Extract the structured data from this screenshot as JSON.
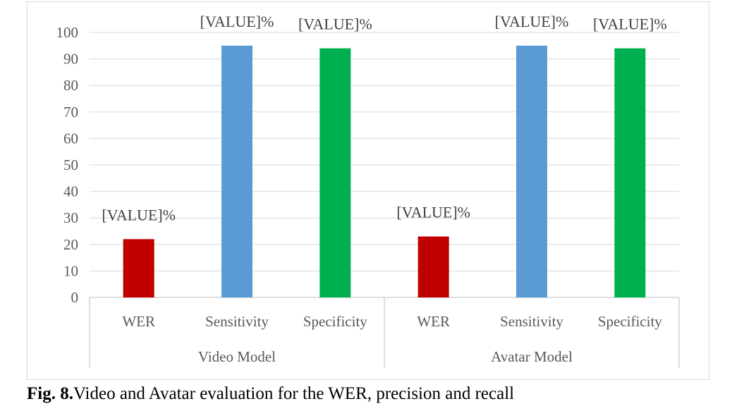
{
  "caption": {
    "label": "Fig. 8.",
    "text": "Video and Avatar evaluation for the WER, precision and recall"
  },
  "chart_data": {
    "type": "bar",
    "groups": [
      {
        "name": "Video Model",
        "categories": [
          "WER",
          "Sensitivity",
          "Specificity"
        ],
        "values": [
          22,
          95,
          94
        ],
        "data_labels": [
          "[VALUE]%",
          "[VALUE]%",
          "[VALUE]%"
        ]
      },
      {
        "name": "Avatar Model",
        "categories": [
          "WER",
          "Sensitivity",
          "Specificity"
        ],
        "values": [
          23,
          95,
          94
        ],
        "data_labels": [
          "[VALUE]%",
          "[VALUE]%",
          "[VALUE]%"
        ]
      }
    ],
    "bar_colors": {
      "WER": "#c00000",
      "Sensitivity": "#5b9bd5",
      "Specificity": "#00b050"
    },
    "ylim": [
      0,
      100
    ],
    "yticks": [
      0,
      10,
      20,
      30,
      40,
      50,
      60,
      70,
      80,
      90,
      100
    ],
    "grid": true,
    "legend": "none"
  }
}
